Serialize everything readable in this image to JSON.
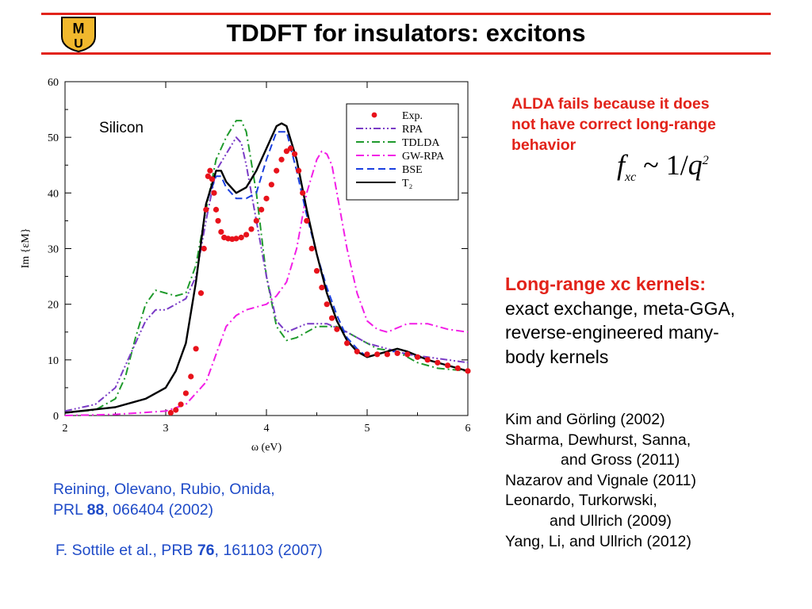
{
  "header": {
    "title": "TDDFT for insulators: excitons",
    "logo_text": "MU"
  },
  "note": {
    "line1": "ALDA fails because it does",
    "line2": "not have correct long-range",
    "line3": "behavior",
    "formula_f": "f",
    "formula_sub": "xc",
    "formula_rel": "~",
    "formula_num": "1",
    "formula_q": "q",
    "formula_exp": "2"
  },
  "kernels": {
    "heading": "Long-range xc kernels:",
    "line1": "exact exchange, meta-GGA,",
    "line2": "reverse-engineered many-",
    "line3": "body kernels"
  },
  "references": [
    "Kim and Görling (2002)",
    "Sharma, Dewhurst, Sanna,",
    "and Gross (2011)",
    "Nazarov and Vignale (2011)",
    "Leonardo, Turkorwski,",
    "and Ullrich (2009)",
    "Yang, Li, and Ullrich (2012)"
  ],
  "citations": {
    "c1_line1": "Reining, Olevano, Rubio, Onida,",
    "c1_prefix": "PRL ",
    "c1_volume": "88",
    "c1_rest": ", 066404 (2002)",
    "c2_prefix": "F. Sottile et al., PRB ",
    "c2_volume": "76",
    "c2_rest": ", 161103 (2007)"
  },
  "colors": {
    "accent": "#e2231a",
    "citation": "#1f4bc8"
  },
  "chart_data": {
    "type": "line",
    "annotation": "Silicon",
    "xlabel": "ω (eV)",
    "ylabel": "Im {εM}",
    "xlim": [
      2,
      6
    ],
    "ylim": [
      0,
      60
    ],
    "xticks": [
      2,
      3,
      4,
      5,
      6
    ],
    "yticks": [
      0,
      10,
      20,
      30,
      40,
      50,
      60
    ],
    "legend_position": "top-right",
    "series": [
      {
        "name": "Exp.",
        "style": "dots",
        "color": "#e8121b",
        "x": [
          3.05,
          3.1,
          3.15,
          3.2,
          3.25,
          3.3,
          3.35,
          3.38,
          3.4,
          3.42,
          3.44,
          3.46,
          3.48,
          3.5,
          3.52,
          3.55,
          3.58,
          3.62,
          3.66,
          3.7,
          3.75,
          3.8,
          3.85,
          3.9,
          3.95,
          4.0,
          4.05,
          4.1,
          4.15,
          4.2,
          4.24,
          4.28,
          4.32,
          4.36,
          4.4,
          4.45,
          4.5,
          4.55,
          4.6,
          4.65,
          4.7,
          4.8,
          4.9,
          5.0,
          5.1,
          5.2,
          5.3,
          5.4,
          5.5,
          5.6,
          5.7,
          5.8,
          5.9,
          6.0
        ],
        "y": [
          0.5,
          1,
          2,
          4,
          7,
          12,
          22,
          30,
          37,
          43,
          44,
          42.5,
          40,
          37,
          35,
          33,
          32,
          31.8,
          31.7,
          31.8,
          32,
          32.5,
          33.5,
          35,
          37,
          39,
          41.5,
          44,
          46,
          47.5,
          48,
          47,
          44,
          40,
          35,
          30,
          26,
          23,
          20,
          17.5,
          15.5,
          13,
          11.5,
          11,
          11,
          11,
          11.2,
          11,
          10.5,
          10,
          9.5,
          9,
          8.5,
          8
        ]
      },
      {
        "name": "RPA",
        "style": "dash-dot-dot",
        "color": "#7a3cc6",
        "x": [
          2.0,
          2.3,
          2.5,
          2.65,
          2.8,
          2.9,
          3.0,
          3.1,
          3.2,
          3.3,
          3.4,
          3.5,
          3.6,
          3.7,
          3.75,
          3.8,
          3.9,
          4.0,
          4.1,
          4.2,
          4.4,
          4.6,
          4.8,
          5.0,
          5.2,
          5.4,
          5.6,
          5.8,
          6.0
        ],
        "y": [
          0.8,
          2,
          5,
          11,
          17,
          19,
          19,
          20,
          21,
          25,
          35,
          44,
          47,
          50,
          49,
          45,
          35,
          25,
          17,
          15,
          16.5,
          16.5,
          15,
          13,
          12,
          11,
          10.5,
          10,
          9.5
        ]
      },
      {
        "name": "TDLDA",
        "style": "dash-dot",
        "color": "#1f9a2c",
        "x": [
          2.0,
          2.3,
          2.5,
          2.6,
          2.7,
          2.8,
          2.9,
          3.0,
          3.1,
          3.2,
          3.3,
          3.4,
          3.5,
          3.6,
          3.7,
          3.75,
          3.8,
          3.9,
          4.0,
          4.1,
          4.2,
          4.3,
          4.5,
          4.7,
          4.9,
          5.1,
          5.3,
          5.5,
          5.7,
          6.0
        ],
        "y": [
          0.5,
          1,
          3,
          7,
          14,
          20,
          22.5,
          22,
          21.5,
          22,
          27,
          37,
          46,
          50,
          53,
          53,
          51,
          40,
          25,
          16,
          13.5,
          14,
          16,
          16,
          14,
          12,
          11.5,
          9.5,
          8.5,
          8
        ]
      },
      {
        "name": "GW-RPA",
        "style": "dash-dot",
        "color": "#f21ee6",
        "x": [
          2.0,
          2.5,
          3.0,
          3.2,
          3.4,
          3.5,
          3.6,
          3.7,
          3.8,
          3.9,
          4.0,
          4.1,
          4.2,
          4.3,
          4.4,
          4.5,
          4.55,
          4.6,
          4.65,
          4.7,
          4.8,
          4.9,
          5.0,
          5.1,
          5.2,
          5.4,
          5.6,
          5.8,
          6.0
        ],
        "y": [
          0,
          0.2,
          0.8,
          2,
          6,
          11,
          16,
          18,
          19,
          19.5,
          20,
          21.5,
          24,
          30,
          40,
          46,
          47.5,
          47,
          45,
          40,
          30,
          22,
          17,
          15.5,
          15,
          16.5,
          16.5,
          15.5,
          15
        ]
      },
      {
        "name": "BSE",
        "style": "dashed",
        "color": "#1a3fe0",
        "x": [
          2.0,
          2.5,
          2.8,
          3.0,
          3.1,
          3.2,
          3.3,
          3.4,
          3.5,
          3.55,
          3.6,
          3.7,
          3.8,
          3.9,
          4.0,
          4.1,
          4.2,
          4.3,
          4.4,
          4.5,
          4.6,
          4.7,
          4.8,
          4.9,
          5.0,
          5.1,
          5.2,
          5.3,
          5.4,
          5.6,
          5.8,
          6.0
        ],
        "y": [
          0.5,
          1.5,
          3,
          5,
          8,
          13,
          24,
          38,
          43,
          43,
          41,
          39,
          39,
          40,
          46,
          51,
          51,
          44,
          36,
          29,
          23,
          18,
          14,
          12,
          10.5,
          11,
          11.5,
          11.5,
          11,
          10,
          9,
          8
        ]
      },
      {
        "name": "T₂",
        "style": "solid",
        "color": "#000000",
        "x": [
          2.0,
          2.5,
          2.8,
          3.0,
          3.1,
          3.2,
          3.3,
          3.4,
          3.5,
          3.55,
          3.6,
          3.7,
          3.8,
          3.9,
          4.0,
          4.1,
          4.15,
          4.2,
          4.3,
          4.4,
          4.5,
          4.6,
          4.7,
          4.8,
          4.9,
          5.0,
          5.1,
          5.2,
          5.3,
          5.4,
          5.6,
          5.8,
          6.0
        ],
        "y": [
          0.5,
          1.5,
          3,
          5,
          8,
          13,
          24,
          38,
          44,
          44,
          42,
          40,
          41,
          44,
          48,
          52,
          52.5,
          52,
          46,
          37,
          29,
          22,
          17,
          13.5,
          11.5,
          10.5,
          11,
          11.5,
          12,
          11.5,
          10,
          9,
          8
        ]
      }
    ]
  }
}
